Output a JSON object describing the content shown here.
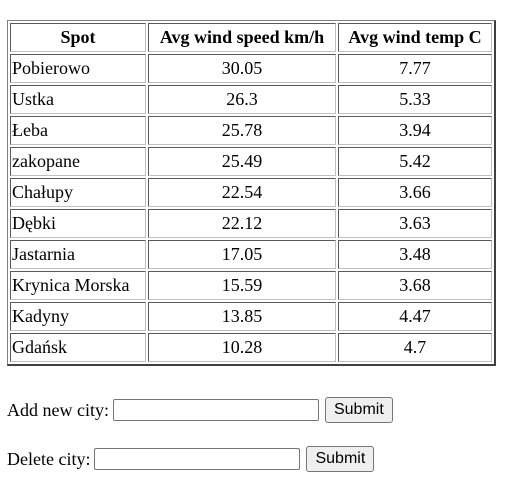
{
  "table": {
    "headers": [
      "Spot",
      "Avg wind speed km/h",
      "Avg wind temp C"
    ],
    "rows": [
      {
        "spot": "Pobierowo",
        "speed": "30.05",
        "temp": "7.77"
      },
      {
        "spot": "Ustka",
        "speed": "26.3",
        "temp": "5.33"
      },
      {
        "spot": "Łeba",
        "speed": "25.78",
        "temp": "3.94"
      },
      {
        "spot": "zakopane",
        "speed": "25.49",
        "temp": "5.42"
      },
      {
        "spot": "Chałupy",
        "speed": "22.54",
        "temp": "3.66"
      },
      {
        "spot": "Dębki",
        "speed": "22.12",
        "temp": "3.63"
      },
      {
        "spot": "Jastarnia",
        "speed": "17.05",
        "temp": "3.48"
      },
      {
        "spot": "Krynica Morska",
        "speed": "15.59",
        "temp": "3.68"
      },
      {
        "spot": "Kadyny",
        "speed": "13.85",
        "temp": "4.47"
      },
      {
        "spot": "Gdańsk",
        "speed": "10.28",
        "temp": "4.7"
      }
    ]
  },
  "add_form": {
    "label": "Add new city:",
    "value": "",
    "submit_label": "Submit"
  },
  "delete_form": {
    "label": "Delete city:",
    "value": "",
    "submit_label": "Submit"
  }
}
